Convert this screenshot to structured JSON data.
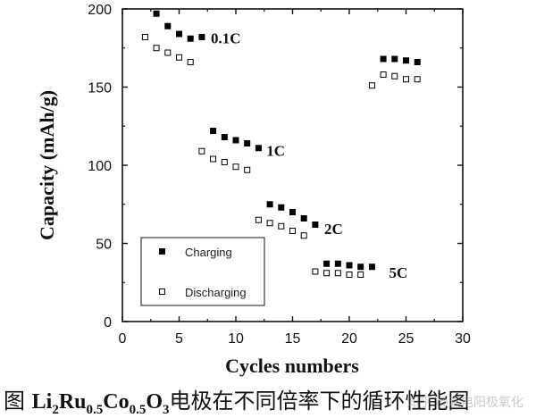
{
  "chart_data": {
    "type": "scatter",
    "xlabel": "Cycles numbers",
    "ylabel": "Capacity (mAh/g)",
    "xlim": [
      0,
      30
    ],
    "ylim": [
      0,
      200
    ],
    "xticks": [
      "0",
      "5",
      "10",
      "15",
      "20",
      "25",
      "30"
    ],
    "yticks": [
      "0",
      "50",
      "100",
      "150",
      "200"
    ],
    "grid": false,
    "legend_position": "lower-left",
    "series": [
      {
        "name": "Charging",
        "marker": "filled-square",
        "points": [
          [
            3,
            197
          ],
          [
            4,
            189
          ],
          [
            5,
            184
          ],
          [
            6,
            181
          ],
          [
            7,
            182
          ],
          [
            8,
            122
          ],
          [
            9,
            118
          ],
          [
            10,
            116
          ],
          [
            11,
            114
          ],
          [
            12,
            111
          ],
          [
            13,
            75
          ],
          [
            14,
            73
          ],
          [
            15,
            70
          ],
          [
            16,
            66
          ],
          [
            17,
            62
          ],
          [
            18,
            37
          ],
          [
            19,
            37
          ],
          [
            20,
            36
          ],
          [
            21,
            35
          ],
          [
            22,
            35
          ],
          [
            23,
            168
          ],
          [
            24,
            168
          ],
          [
            25,
            167
          ],
          [
            26,
            166
          ]
        ]
      },
      {
        "name": "Discharging",
        "marker": "open-square",
        "points": [
          [
            2,
            182
          ],
          [
            3,
            175
          ],
          [
            4,
            172
          ],
          [
            5,
            169
          ],
          [
            6,
            166
          ],
          [
            7,
            109
          ],
          [
            8,
            104
          ],
          [
            9,
            102
          ],
          [
            10,
            99
          ],
          [
            11,
            97
          ],
          [
            12,
            65
          ],
          [
            13,
            63
          ],
          [
            14,
            61
          ],
          [
            15,
            58
          ],
          [
            16,
            55
          ],
          [
            17,
            32
          ],
          [
            18,
            31
          ],
          [
            19,
            31
          ],
          [
            20,
            30
          ],
          [
            21,
            30
          ],
          [
            22,
            151
          ],
          [
            23,
            158
          ],
          [
            24,
            157
          ],
          [
            25,
            155
          ],
          [
            26,
            155
          ]
        ]
      }
    ],
    "annotations": [
      {
        "text": "0.1C",
        "x": 7.8,
        "y": 178
      },
      {
        "text": "1C",
        "x": 12.7,
        "y": 106
      },
      {
        "text": "2C",
        "x": 17.8,
        "y": 56
      },
      {
        "text": "5C",
        "x": 23.5,
        "y": 28
      }
    ]
  },
  "caption": {
    "prefix": "图 ",
    "formula_parts": [
      {
        "text": "Li",
        "sub": "2"
      },
      {
        "text": "Ru",
        "sub": "0.5"
      },
      {
        "text": "Co",
        "sub": "0.5"
      },
      {
        "text": "O",
        "sub": "3"
      }
    ],
    "suffix": "电极在不同倍率下的循环性能图"
  },
  "watermark": "知乎 @漏电阳极氧化"
}
